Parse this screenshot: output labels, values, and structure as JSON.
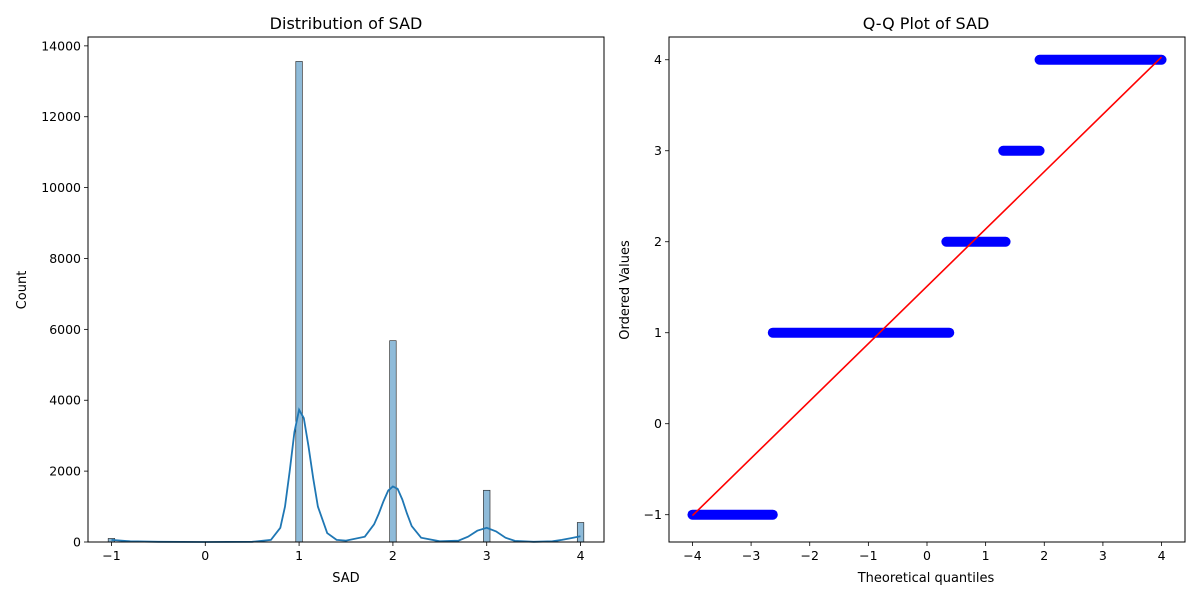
{
  "chart_data": [
    {
      "type": "bar",
      "title": "Distribution of SAD",
      "xlabel": "SAD",
      "ylabel": "Count",
      "xlim": [
        -1.25,
        4.25
      ],
      "ylim": [
        0,
        14250
      ],
      "grid": false,
      "xticks": [
        -1,
        0,
        1,
        2,
        3,
        4
      ],
      "yticks": [
        0,
        2000,
        4000,
        6000,
        8000,
        10000,
        12000,
        14000
      ],
      "bar_color": "#1f77b4",
      "bars": [
        {
          "x": -1,
          "value": 100
        },
        {
          "x": 1,
          "value": 13560
        },
        {
          "x": 2,
          "value": 5680
        },
        {
          "x": 3,
          "value": 1460
        },
        {
          "x": 4,
          "value": 550
        }
      ],
      "kde": {
        "color": "#1f77b4",
        "x": [
          -1.0,
          -0.8,
          -0.5,
          0.0,
          0.5,
          0.7,
          0.8,
          0.85,
          0.9,
          0.95,
          1.0,
          1.05,
          1.1,
          1.15,
          1.2,
          1.3,
          1.4,
          1.5,
          1.7,
          1.8,
          1.85,
          1.9,
          1.95,
          2.0,
          2.05,
          2.1,
          2.15,
          2.2,
          2.3,
          2.5,
          2.7,
          2.8,
          2.9,
          3.0,
          3.1,
          3.2,
          3.3,
          3.5,
          3.7,
          3.8,
          3.9,
          4.0
        ],
        "y": [
          60,
          20,
          5,
          0,
          5,
          60,
          400,
          1000,
          2000,
          3100,
          3730,
          3500,
          2700,
          1800,
          1000,
          250,
          60,
          40,
          150,
          500,
          800,
          1150,
          1450,
          1570,
          1500,
          1200,
          800,
          450,
          120,
          20,
          40,
          150,
          320,
          400,
          300,
          120,
          30,
          5,
          20,
          60,
          110,
          160
        ]
      }
    },
    {
      "type": "scatter",
      "title": "Q-Q Plot of SAD",
      "xlabel": "Theoretical quantiles",
      "ylabel": "Ordered Values",
      "xlim": [
        -4.4,
        4.4
      ],
      "ylim": [
        -1.3,
        4.25
      ],
      "grid": false,
      "xticks": [
        -4,
        -3,
        -2,
        -1,
        0,
        1,
        2,
        3,
        4
      ],
      "yticks": [
        -1,
        0,
        1,
        2,
        3,
        4
      ],
      "point_color": "#0000ff",
      "line_color": "#ff0000",
      "segments": [
        {
          "y": -1,
          "x_from": -4.0,
          "x_to": -2.63,
          "isolated": [
            -4.0,
            -3.78,
            -3.7
          ]
        },
        {
          "y": 1,
          "x_from": -2.63,
          "x_to": 0.38,
          "isolated": []
        },
        {
          "y": 2,
          "x_from": 0.33,
          "x_to": 1.34,
          "isolated": []
        },
        {
          "y": 3,
          "x_from": 1.3,
          "x_to": 1.92,
          "isolated": []
        },
        {
          "y": 4,
          "x_from": 1.92,
          "x_to": 4.0,
          "isolated": [
            3.78,
            4.0
          ]
        }
      ],
      "fit_line": {
        "slope": 0.63,
        "intercept": 1.51
      }
    }
  ]
}
